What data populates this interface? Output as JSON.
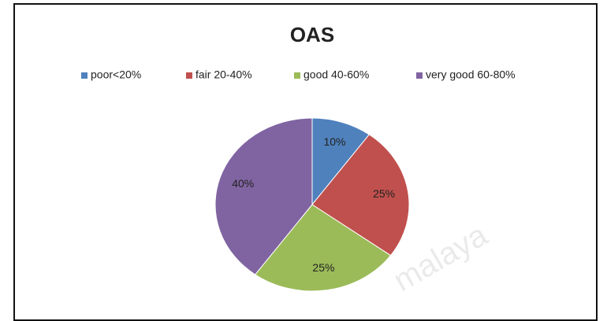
{
  "chart_data": {
    "type": "pie",
    "title": "OAS",
    "categories": [
      "poor<20%",
      "fair 20-40%",
      "good 40-60%",
      "very good 60-80%"
    ],
    "values": [
      10,
      25,
      25,
      40
    ],
    "value_labels": [
      "10%",
      "25%",
      "25%",
      "40%"
    ],
    "colors": [
      "#4f81bd",
      "#c0504d",
      "#9bbb59",
      "#8064a2"
    ],
    "legend": "top",
    "watermark": "malaya"
  }
}
